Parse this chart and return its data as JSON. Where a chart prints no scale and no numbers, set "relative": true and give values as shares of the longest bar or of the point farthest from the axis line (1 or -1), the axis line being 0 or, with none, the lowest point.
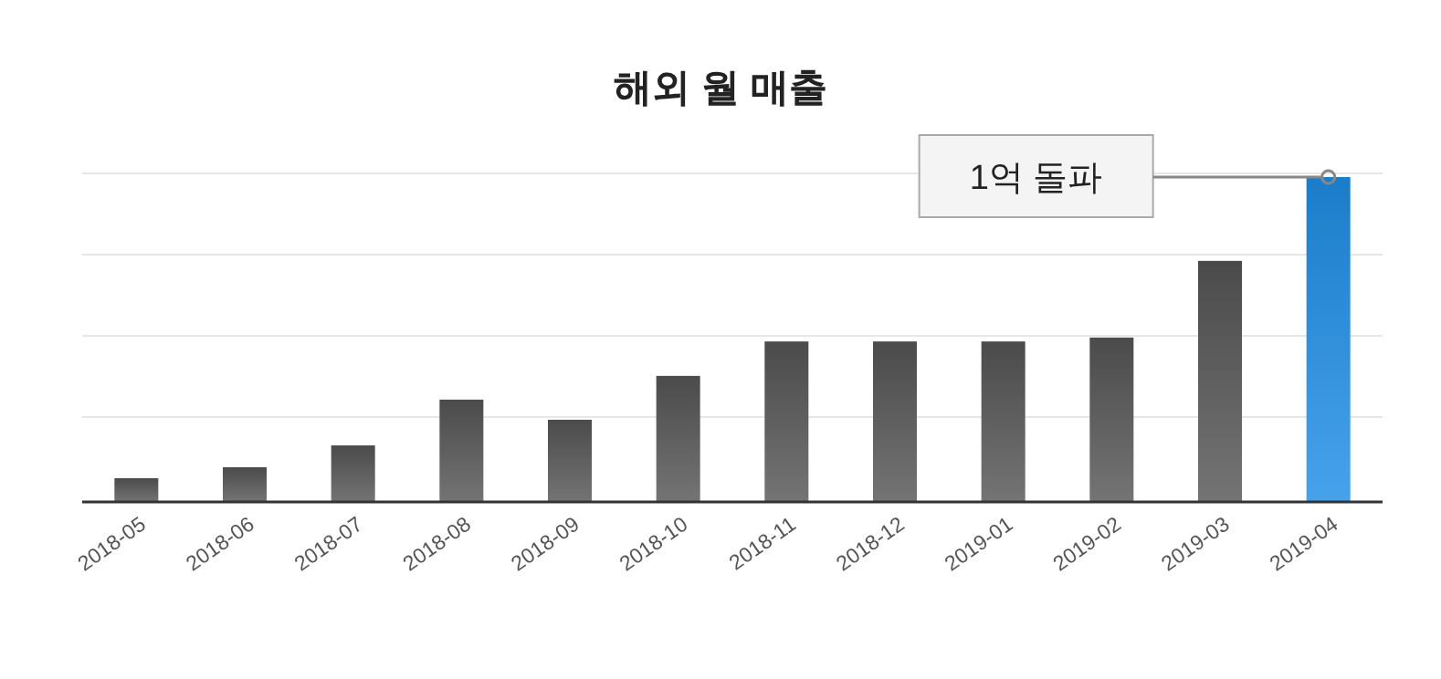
{
  "chart_data": {
    "type": "bar",
    "title": "해외 월 매출",
    "relative": true,
    "grid": "y",
    "categories": [
      "2018-05",
      "2018-06",
      "2018-07",
      "2018-08",
      "2018-09",
      "2018-10",
      "2018-11",
      "2018-12",
      "2019-01",
      "2019-02",
      "2019-03",
      "2019-04"
    ],
    "values": [
      0.073,
      0.107,
      0.174,
      0.315,
      0.253,
      0.388,
      0.494,
      0.494,
      0.494,
      0.506,
      0.742,
      1
    ],
    "colors": [
      "#555555",
      "#555555",
      "#555555",
      "#555555",
      "#555555",
      "#555555",
      "#555555",
      "#555555",
      "#555555",
      "#555555",
      "#555555",
      "#1f8ee6"
    ],
    "annotations": [
      "1억 돌파"
    ]
  }
}
